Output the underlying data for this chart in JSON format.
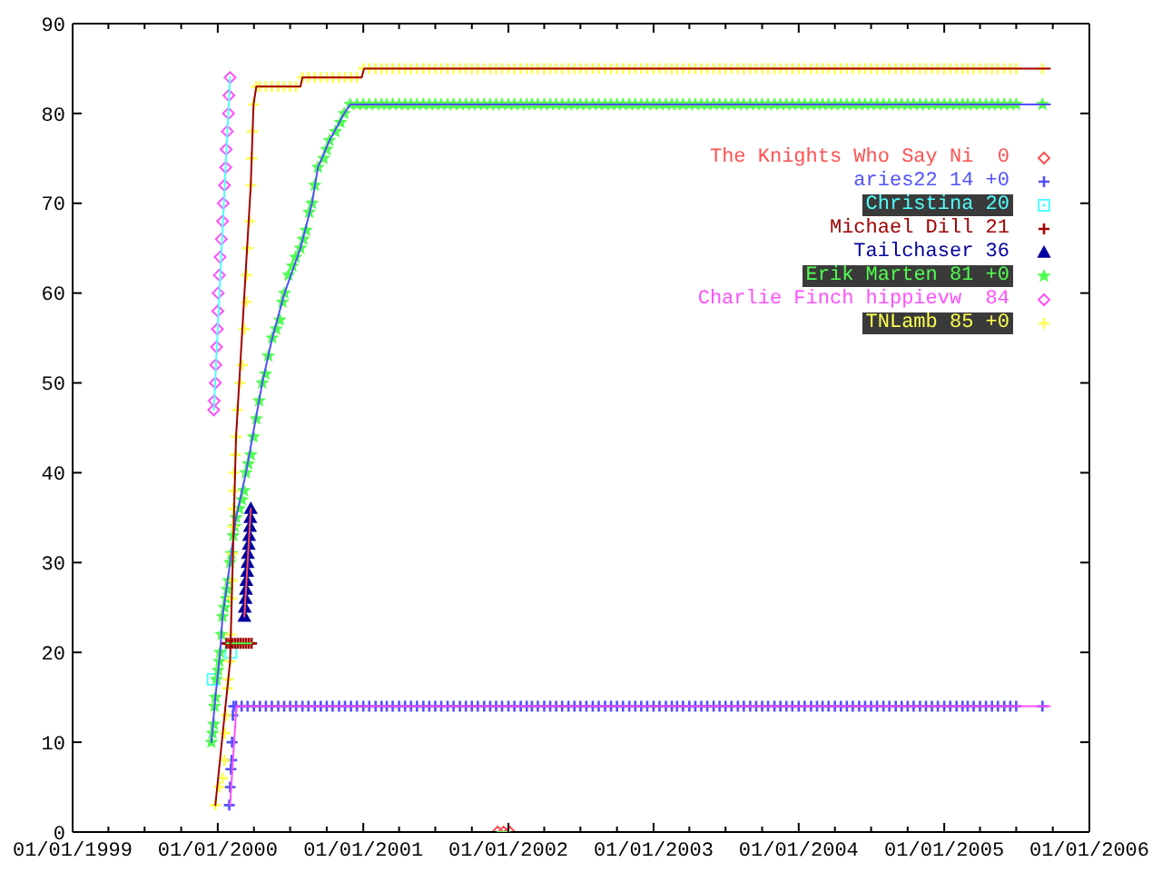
{
  "chart_data": {
    "type": "scatter",
    "xlim": [
      "1999-01-01",
      "2006-01-01"
    ],
    "xticks": [
      {
        "value": "1999-01-01",
        "label": "01/01/1999"
      },
      {
        "value": "1999-04-01",
        "label": null
      },
      {
        "value": "1999-07-01",
        "label": null
      },
      {
        "value": "1999-10-01",
        "label": null
      },
      {
        "value": "2000-01-01",
        "label": "01/01/2000"
      },
      {
        "value": "2000-04-01",
        "label": null
      },
      {
        "value": "2000-07-01",
        "label": null
      },
      {
        "value": "2000-10-01",
        "label": null
      },
      {
        "value": "2001-01-01",
        "label": "01/01/2001"
      },
      {
        "value": "2001-04-01",
        "label": null
      },
      {
        "value": "2001-07-01",
        "label": null
      },
      {
        "value": "2001-10-01",
        "label": null
      },
      {
        "value": "2002-01-01",
        "label": "01/01/2002"
      },
      {
        "value": "2002-04-01",
        "label": null
      },
      {
        "value": "2002-07-01",
        "label": null
      },
      {
        "value": "2002-10-01",
        "label": null
      },
      {
        "value": "2003-01-01",
        "label": "01/01/2003"
      },
      {
        "value": "2003-04-01",
        "label": null
      },
      {
        "value": "2003-07-01",
        "label": null
      },
      {
        "value": "2003-10-01",
        "label": null
      },
      {
        "value": "2004-01-01",
        "label": "01/01/2004"
      },
      {
        "value": "2004-04-01",
        "label": null
      },
      {
        "value": "2004-07-01",
        "label": null
      },
      {
        "value": "2004-10-01",
        "label": null
      },
      {
        "value": "2005-01-01",
        "label": "01/01/2005"
      },
      {
        "value": "2005-04-01",
        "label": null
      },
      {
        "value": "2005-07-01",
        "label": null
      },
      {
        "value": "2005-10-01",
        "label": null
      },
      {
        "value": "2006-01-01",
        "label": "01/01/2006"
      }
    ],
    "ylim": [
      0,
      90
    ],
    "yticks": [
      0,
      10,
      20,
      30,
      40,
      50,
      60,
      70,
      80,
      90
    ],
    "legend": "top right",
    "series": [
      {
        "name": "The Knights Who Say Ni  0",
        "color": "#ff5050",
        "marker": "diamond",
        "x": [
          "2001-12-05",
          "2001-12-20",
          "2002-01-04"
        ],
        "values": [
          0,
          0,
          0
        ]
      },
      {
        "name": "aries22 14 +0",
        "color": "#5050ff",
        "marker": "cross",
        "x": [
          "2000-01-30",
          "2000-02-01",
          "2000-02-03",
          "2000-02-05",
          "2000-02-06",
          "2000-02-08",
          "2000-02-10",
          "2000-02-16",
          "2000-03-01",
          "2000-03-16",
          "2000-04-01",
          "2000-04-16",
          "2000-05-01",
          "2000-05-16",
          "2000-06-01",
          "2000-06-16",
          "2000-07-01",
          "2000-07-16",
          "2000-08-01",
          "2000-08-16",
          "2000-09-01",
          "2000-09-16",
          "2000-10-01",
          "2000-10-16",
          "2000-11-01",
          "2000-11-16",
          "2000-12-01",
          "2000-12-16",
          "2001-01-01",
          "2001-01-16",
          "2001-02-01",
          "2001-02-16",
          "2001-03-01",
          "2001-03-16",
          "2001-04-01",
          "2001-04-16",
          "2001-05-01",
          "2001-05-16",
          "2001-06-01",
          "2001-06-16",
          "2001-07-01",
          "2001-07-16",
          "2001-08-01",
          "2001-08-16",
          "2001-09-01",
          "2001-09-16",
          "2001-10-01",
          "2001-10-16",
          "2001-11-01",
          "2001-11-16",
          "2001-12-01",
          "2001-12-16",
          "2002-01-01",
          "2002-01-16",
          "2002-02-01",
          "2002-02-16",
          "2002-03-01",
          "2002-03-16",
          "2002-04-01",
          "2002-04-16",
          "2002-05-01",
          "2002-05-16",
          "2002-06-01",
          "2002-06-16",
          "2002-07-01",
          "2002-07-16",
          "2002-08-01",
          "2002-08-16",
          "2002-09-01",
          "2002-09-16",
          "2002-10-01",
          "2002-10-16",
          "2002-11-01",
          "2002-11-16",
          "2002-12-01",
          "2002-12-16",
          "2003-01-01",
          "2003-01-16",
          "2003-02-01",
          "2003-02-16",
          "2003-03-01",
          "2003-03-16",
          "2003-04-01",
          "2003-04-16",
          "2003-05-01",
          "2003-05-16",
          "2003-06-01",
          "2003-06-16",
          "2003-07-01",
          "2003-07-16",
          "2003-08-01",
          "2003-08-16",
          "2003-09-01",
          "2003-09-16",
          "2003-10-01",
          "2003-10-16",
          "2003-11-01",
          "2003-11-16",
          "2003-12-01",
          "2003-12-16",
          "2004-01-01",
          "2004-01-16",
          "2004-02-01",
          "2004-02-16",
          "2004-03-01",
          "2004-03-16",
          "2004-04-01",
          "2004-04-16",
          "2004-05-01",
          "2004-05-16",
          "2004-06-01",
          "2004-06-16",
          "2004-07-01",
          "2004-07-16",
          "2004-08-01",
          "2004-08-16",
          "2004-09-01",
          "2004-09-16",
          "2004-10-01",
          "2004-10-16",
          "2004-11-01",
          "2004-11-16",
          "2004-12-01",
          "2004-12-16",
          "2005-01-01",
          "2005-01-16",
          "2005-02-01",
          "2005-02-16",
          "2005-03-01",
          "2005-03-16",
          "2005-04-01",
          "2005-04-16",
          "2005-05-01",
          "2005-05-16",
          "2005-06-01",
          "2005-06-16",
          "2005-07-01",
          "2005-09-05"
        ],
        "values": [
          3,
          5,
          7,
          8,
          10,
          13,
          14,
          14,
          14,
          14,
          14,
          14,
          14,
          14,
          14,
          14,
          14,
          14,
          14,
          14,
          14,
          14,
          14,
          14,
          14,
          14,
          14,
          14,
          14,
          14,
          14,
          14,
          14,
          14,
          14,
          14,
          14,
          14,
          14,
          14,
          14,
          14,
          14,
          14,
          14,
          14,
          14,
          14,
          14,
          14,
          14,
          14,
          14,
          14,
          14,
          14,
          14,
          14,
          14,
          14,
          14,
          14,
          14,
          14,
          14,
          14,
          14,
          14,
          14,
          14,
          14,
          14,
          14,
          14,
          14,
          14,
          14,
          14,
          14,
          14,
          14,
          14,
          14,
          14,
          14,
          14,
          14,
          14,
          14,
          14,
          14,
          14,
          14,
          14,
          14,
          14,
          14,
          14,
          14,
          14,
          14,
          14,
          14,
          14,
          14,
          14,
          14,
          14,
          14,
          14,
          14,
          14,
          14,
          14,
          14,
          14,
          14,
          14,
          14,
          14,
          14,
          14,
          14,
          14,
          14,
          14,
          14,
          14,
          14,
          14,
          14,
          14,
          14,
          14,
          14,
          14,
          14,
          14
        ]
      },
      {
        "name": "Christina 20",
        "color": "#50ffff",
        "marker": "square",
        "x": [
          "1999-12-20",
          "2000-02-03"
        ],
        "values": [
          17,
          20
        ]
      },
      {
        "name": "Michael Dill 21",
        "color": "#a00000",
        "marker": "cross",
        "x": [
          "2000-01-23",
          "2000-01-30",
          "2000-02-06",
          "2000-02-13",
          "2000-02-20",
          "2000-02-27",
          "2000-03-05",
          "2000-03-12",
          "2000-03-19",
          "2000-03-26"
        ],
        "values": [
          21,
          21,
          21,
          21,
          21,
          21,
          21,
          21,
          21,
          21
        ]
      },
      {
        "name": "Tailchaser 36",
        "color": "#0000a0",
        "marker": "triangle",
        "x": [
          "2000-03-08",
          "2000-03-09",
          "2000-03-11",
          "2000-03-12",
          "2000-03-13",
          "2000-03-15",
          "2000-03-16",
          "2000-03-17",
          "2000-03-19",
          "2000-03-20",
          "2000-03-22",
          "2000-03-23",
          "2000-03-24"
        ],
        "values": [
          24,
          25,
          26,
          27,
          28,
          29,
          30,
          31,
          32,
          33,
          34,
          35,
          36
        ]
      },
      {
        "name": "Erik Marten 81 +0",
        "color": "#50ff50",
        "marker": "star",
        "x": [
          "1999-12-16",
          "1999-12-19",
          "1999-12-22",
          "1999-12-24",
          "1999-12-26",
          "1999-12-29",
          "2000-01-02",
          "2000-01-05",
          "2000-01-07",
          "2000-01-10",
          "2000-01-13",
          "2000-01-18",
          "2000-01-22",
          "2000-01-25",
          "2000-01-28",
          "2000-02-01",
          "2000-02-04",
          "2000-02-09",
          "2000-02-13",
          "2000-02-16",
          "2000-02-24",
          "2000-03-02",
          "2000-03-07",
          "2000-03-12",
          "2000-03-18",
          "2000-03-24",
          "2000-03-31",
          "2000-04-07",
          "2000-04-14",
          "2000-04-22",
          "2000-04-30",
          "2000-05-07",
          "2000-05-17",
          "2000-05-27",
          "2000-06-05",
          "2000-06-12",
          "2000-06-17",
          "2000-06-27",
          "2000-07-07",
          "2000-07-15",
          "2000-07-27",
          "2000-08-03",
          "2000-08-10",
          "2000-08-18",
          "2000-08-25",
          "2000-09-01",
          "2000-09-09",
          "2000-09-23",
          "2000-10-01",
          "2000-10-08",
          "2000-10-23",
          "2000-11-05",
          "2000-11-14",
          "2000-11-29",
          "2000-12-16",
          "2001-01-01",
          "2001-01-16",
          "2001-02-01",
          "2001-02-16",
          "2001-03-01",
          "2001-03-16",
          "2001-04-01",
          "2001-04-16",
          "2001-05-01",
          "2001-05-16",
          "2001-06-01",
          "2001-06-16",
          "2001-07-01",
          "2001-07-16",
          "2001-08-01",
          "2001-08-16",
          "2001-09-01",
          "2001-09-16",
          "2001-10-01",
          "2001-10-16",
          "2001-11-01",
          "2001-11-16",
          "2001-12-01",
          "2001-12-16",
          "2002-01-01",
          "2002-01-16",
          "2002-02-01",
          "2002-02-16",
          "2002-03-01",
          "2002-03-16",
          "2002-04-01",
          "2002-04-16",
          "2002-05-01",
          "2002-05-16",
          "2002-06-01",
          "2002-06-16",
          "2002-07-01",
          "2002-07-16",
          "2002-08-01",
          "2002-08-16",
          "2002-09-01",
          "2002-09-16",
          "2002-10-01",
          "2002-10-16",
          "2002-11-01",
          "2002-11-16",
          "2002-12-01",
          "2002-12-16",
          "2003-01-01",
          "2003-01-16",
          "2003-02-01",
          "2003-02-16",
          "2003-03-01",
          "2003-03-16",
          "2003-04-01",
          "2003-04-16",
          "2003-05-01",
          "2003-05-16",
          "2003-06-01",
          "2003-06-16",
          "2003-07-01",
          "2003-07-16",
          "2003-08-01",
          "2003-08-16",
          "2003-09-01",
          "2003-09-16",
          "2003-10-01",
          "2003-10-16",
          "2003-11-01",
          "2003-11-16",
          "2003-12-01",
          "2003-12-16",
          "2004-01-01",
          "2004-01-16",
          "2004-02-01",
          "2004-02-16",
          "2004-03-01",
          "2004-03-16",
          "2004-04-01",
          "2004-04-16",
          "2004-05-01",
          "2004-05-16",
          "2004-06-01",
          "2004-06-16",
          "2004-07-01",
          "2004-07-16",
          "2004-08-01",
          "2004-08-16",
          "2004-09-01",
          "2004-09-16",
          "2004-10-01",
          "2004-10-16",
          "2004-11-01",
          "2004-11-16",
          "2004-12-01",
          "2004-12-16",
          "2005-01-01",
          "2005-01-16",
          "2005-02-01",
          "2005-02-16",
          "2005-03-01",
          "2005-03-16",
          "2005-04-01",
          "2005-04-16",
          "2005-05-01",
          "2005-05-16",
          "2005-06-01",
          "2005-06-16",
          "2005-07-01",
          "2005-09-05"
        ],
        "values": [
          10,
          11,
          12,
          14,
          15,
          17,
          18,
          19,
          20,
          22,
          24,
          25,
          26,
          27,
          28,
          30,
          31,
          33,
          34,
          35,
          36,
          37,
          38,
          40,
          41,
          42,
          44,
          46,
          48,
          50,
          51,
          53,
          55,
          56,
          57,
          59,
          60,
          62,
          63,
          64,
          65,
          66,
          67,
          69,
          70,
          72,
          74,
          75,
          76,
          77,
          78,
          79,
          80,
          81,
          81,
          81,
          81,
          81,
          81,
          81,
          81,
          81,
          81,
          81,
          81,
          81,
          81,
          81,
          81,
          81,
          81,
          81,
          81,
          81,
          81,
          81,
          81,
          81,
          81,
          81,
          81,
          81,
          81,
          81,
          81,
          81,
          81,
          81,
          81,
          81,
          81,
          81,
          81,
          81,
          81,
          81,
          81,
          81,
          81,
          81,
          81,
          81,
          81,
          81,
          81,
          81,
          81,
          81,
          81,
          81,
          81,
          81,
          81,
          81,
          81,
          81,
          81,
          81,
          81,
          81,
          81,
          81,
          81,
          81,
          81,
          81,
          81,
          81,
          81,
          81,
          81,
          81,
          81,
          81,
          81,
          81,
          81,
          81,
          81,
          81,
          81,
          81,
          81,
          81,
          81,
          81,
          81,
          81,
          81,
          81,
          81,
          81,
          81,
          81,
          81,
          81,
          81,
          81,
          81,
          81,
          81,
          81,
          81,
          81,
          81
        ]
      },
      {
        "name": "Charlie Finch hippievw  84",
        "color": "#ff50ff",
        "marker": "diamond",
        "x": [
          "1999-12-22",
          "1999-12-23",
          "1999-12-26",
          "1999-12-27",
          "1999-12-29",
          "1999-12-31",
          "2000-01-01",
          "2000-01-02",
          "2000-01-05",
          "2000-01-07",
          "2000-01-10",
          "2000-01-13",
          "2000-01-15",
          "2000-01-18",
          "2000-01-21",
          "2000-01-22",
          "2000-01-25",
          "2000-01-28",
          "2000-01-29",
          "2000-02-01"
        ],
        "values": [
          47,
          48,
          50,
          52,
          54,
          56,
          58,
          60,
          62,
          64,
          66,
          68,
          70,
          72,
          74,
          76,
          78,
          80,
          82,
          84
        ]
      },
      {
        "name": "TNLamb 85 +0",
        "color": "#ffff50",
        "marker": "cross",
        "x": [
          "1999-12-26",
          "2000-01-05",
          "2000-01-13",
          "2000-01-18",
          "2000-01-19",
          "2000-01-22",
          "2000-01-25",
          "2000-01-28",
          "2000-02-01",
          "2000-02-02",
          "2000-02-04",
          "2000-02-06",
          "2000-02-07",
          "2000-02-08",
          "2000-02-09",
          "2000-02-10",
          "2000-02-11",
          "2000-02-14",
          "2000-02-16",
          "2000-02-19",
          "2000-02-26",
          "2000-03-02",
          "2000-03-08",
          "2000-03-13",
          "2000-03-14",
          "2000-03-16",
          "2000-03-21",
          "2000-03-24",
          "2000-03-26",
          "2000-03-28",
          "2000-03-31",
          "2000-04-07",
          "2000-04-16",
          "2000-05-01",
          "2000-05-16",
          "2000-06-01",
          "2000-06-16",
          "2000-07-01",
          "2000-07-16",
          "2000-08-01",
          "2000-08-16",
          "2000-09-01",
          "2000-09-16",
          "2000-10-01",
          "2000-10-16",
          "2000-11-01",
          "2000-11-16",
          "2000-12-01",
          "2000-12-16",
          "2001-01-01",
          "2001-01-16",
          "2001-02-01",
          "2001-02-16",
          "2001-03-01",
          "2001-03-16",
          "2001-04-01",
          "2001-04-16",
          "2001-05-01",
          "2001-05-16",
          "2001-06-01",
          "2001-06-16",
          "2001-07-01",
          "2001-07-16",
          "2001-08-01",
          "2001-08-16",
          "2001-09-01",
          "2001-09-16",
          "2001-10-01",
          "2001-10-16",
          "2001-11-01",
          "2001-11-16",
          "2001-12-01",
          "2001-12-16",
          "2002-01-01",
          "2002-01-16",
          "2002-02-01",
          "2002-02-16",
          "2002-03-01",
          "2002-03-16",
          "2002-04-01",
          "2002-04-16",
          "2002-05-01",
          "2002-05-16",
          "2002-06-01",
          "2002-06-16",
          "2002-07-01",
          "2002-07-16",
          "2002-08-01",
          "2002-08-16",
          "2002-09-01",
          "2002-09-16",
          "2002-10-01",
          "2002-10-16",
          "2002-11-01",
          "2002-11-16",
          "2002-12-01",
          "2002-12-16",
          "2003-01-01",
          "2003-01-16",
          "2003-02-01",
          "2003-02-16",
          "2003-03-01",
          "2003-03-16",
          "2003-04-01",
          "2003-04-16",
          "2003-05-01",
          "2003-05-16",
          "2003-06-01",
          "2003-06-16",
          "2003-07-01",
          "2003-07-16",
          "2003-08-01",
          "2003-08-16",
          "2003-09-01",
          "2003-09-16",
          "2003-10-01",
          "2003-10-16",
          "2003-11-01",
          "2003-11-16",
          "2003-12-01",
          "2003-12-16",
          "2004-01-01",
          "2004-01-16",
          "2004-02-01",
          "2004-02-16",
          "2004-03-01",
          "2004-03-16",
          "2004-04-01",
          "2004-04-16",
          "2004-05-01",
          "2004-05-16",
          "2004-06-01",
          "2004-06-16",
          "2004-07-01",
          "2004-07-16",
          "2004-08-01",
          "2004-08-16",
          "2004-09-01",
          "2004-09-16",
          "2004-10-01",
          "2004-10-16",
          "2004-11-01",
          "2004-11-16",
          "2004-12-01",
          "2004-12-16",
          "2005-01-01",
          "2005-01-16",
          "2005-02-01",
          "2005-02-16",
          "2005-03-01",
          "2005-03-16",
          "2005-04-01",
          "2005-04-16",
          "2005-05-01",
          "2005-05-16",
          "2005-06-01",
          "2005-06-16",
          "2005-07-01",
          "2005-09-05"
        ],
        "values": [
          3,
          5,
          6,
          8,
          11,
          13,
          16,
          17,
          19,
          22,
          26,
          28,
          31,
          34,
          36,
          38,
          40,
          42,
          44,
          47,
          50,
          52,
          56,
          59,
          62,
          65,
          68,
          72,
          75,
          78,
          81,
          83,
          83,
          83,
          83,
          83,
          83,
          83,
          83,
          84,
          84,
          84,
          84,
          84,
          84,
          84,
          84,
          84,
          84,
          85,
          85,
          85,
          85,
          85,
          85,
          85,
          85,
          85,
          85,
          85,
          85,
          85,
          85,
          85,
          85,
          85,
          85,
          85,
          85,
          85,
          85,
          85,
          85,
          85,
          85,
          85,
          85,
          85,
          85,
          85,
          85,
          85,
          85,
          85,
          85,
          85,
          85,
          85,
          85,
          85,
          85,
          85,
          85,
          85,
          85,
          85,
          85,
          85,
          85,
          85,
          85,
          85,
          85,
          85,
          85,
          85,
          85,
          85,
          85,
          85,
          85,
          85,
          85,
          85,
          85,
          85,
          85,
          85,
          85,
          85,
          85,
          85,
          85,
          85,
          85,
          85,
          85,
          85,
          85,
          85,
          85,
          85,
          85,
          85,
          85,
          85,
          85,
          85,
          85,
          85,
          85,
          85,
          85,
          85,
          85,
          85,
          85,
          85,
          85,
          85,
          85,
          85,
          85,
          85,
          85,
          85,
          85,
          85,
          85
        ]
      },
      {
        "type": "line",
        "color": "#50ff50",
        "marker": "none",
        "x": [
          "2001-12-05",
          "2002-01-04"
        ],
        "values": [
          0,
          0
        ]
      },
      {
        "type": "line",
        "color": "#ff50ff",
        "marker": "none",
        "x": [
          "2000-02-01",
          "2000-02-17",
          "2005-09-24"
        ],
        "values": [
          3,
          14,
          14
        ]
      },
      {
        "type": "line",
        "color": "#50ff50",
        "marker": "none",
        "x": [
          "2000-01-23",
          "2000-03-26"
        ],
        "values": [
          21,
          21
        ]
      },
      {
        "type": "line",
        "color": "#ff5050",
        "marker": "none",
        "x": [
          "2000-03-08",
          "2000-03-24"
        ],
        "values": [
          24,
          36
        ]
      },
      {
        "type": "line",
        "color": "#5050ff",
        "marker": "none",
        "x": [
          "1999-12-16",
          "1999-12-26",
          "2000-01-07",
          "2000-01-13",
          "2000-02-01",
          "2000-02-16",
          "2000-03-12",
          "2000-04-22",
          "2000-05-17",
          "2000-06-17",
          "2000-07-27",
          "2000-08-25",
          "2000-09-09",
          "2000-10-08",
          "2000-11-14",
          "2000-11-29",
          "2005-09-24"
        ],
        "values": [
          10,
          15,
          20,
          24,
          30,
          35,
          40,
          50,
          55,
          60,
          65,
          70,
          74,
          77,
          80,
          81,
          81
        ]
      },
      {
        "type": "line",
        "color": "#50ffff",
        "marker": "none",
        "x": [
          "1999-12-22",
          "2000-02-01"
        ],
        "values": [
          47,
          84
        ]
      },
      {
        "type": "line",
        "color": "#a00000",
        "marker": "none",
        "x": [
          "1999-12-26",
          "2000-02-01",
          "2000-02-16",
          "2000-03-24",
          "2000-03-31",
          "2000-04-07",
          "2000-07-27",
          "2000-08-01",
          "2000-12-28",
          "2001-01-03",
          "2005-09-24"
        ],
        "values": [
          3,
          19,
          44,
          72,
          81,
          83,
          83,
          84,
          84,
          85,
          85
        ]
      }
    ]
  }
}
